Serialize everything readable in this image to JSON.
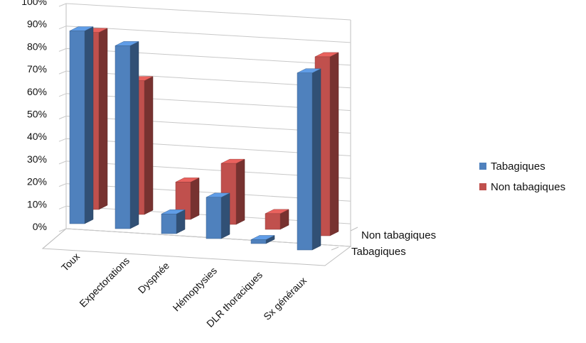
{
  "chart_data": {
    "type": "bar",
    "subtype": "3d-clustered-column",
    "categories": [
      "Toux",
      "Expectorations",
      "Dyspnée",
      "Hémoptysies",
      "DLR thoraciques",
      "Sx généraux"
    ],
    "series": [
      {
        "name": "Tabagiques",
        "color": "#4f81bd",
        "values": [
          98,
          93,
          10,
          21,
          2,
          90
        ]
      },
      {
        "name": "Non tabagiques",
        "color": "#c0504d",
        "values": [
          90,
          68,
          19,
          31,
          8,
          91
        ]
      }
    ],
    "y_ticks": [
      "0%",
      "10%",
      "20%",
      "30%",
      "40%",
      "50%",
      "60%",
      "70%",
      "80%",
      "90%",
      "100%"
    ],
    "depth_labels": [
      "Non tabagiques",
      "Tabagiques"
    ],
    "ylim": [
      0,
      100
    ],
    "grid": true,
    "legend_position": "right"
  }
}
